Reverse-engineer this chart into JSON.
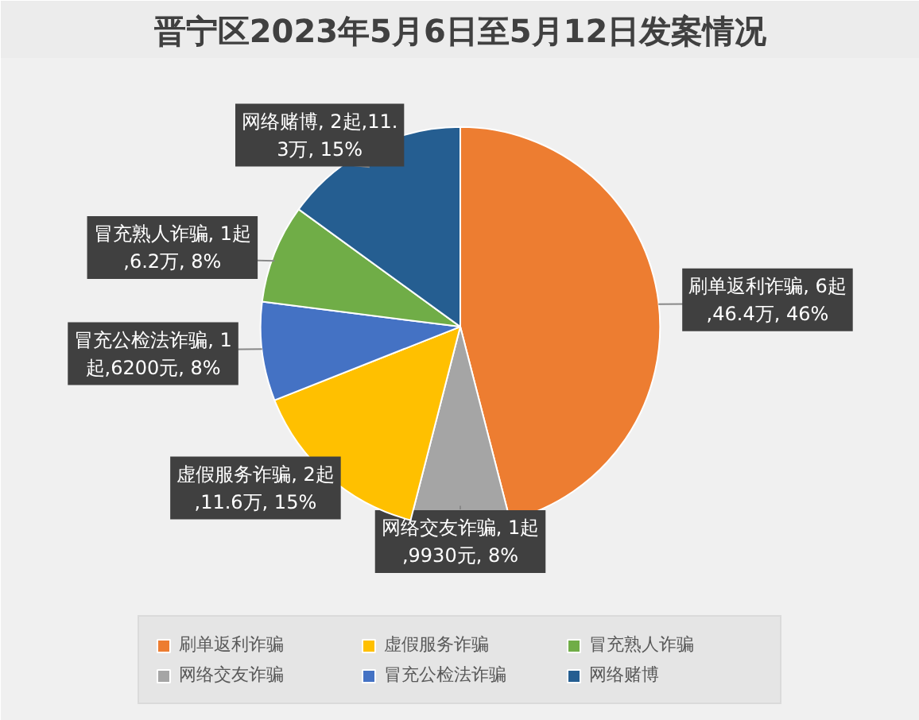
{
  "chart_data": {
    "type": "pie",
    "title": "晋宁区2023年5月6日至5月12日发案情况",
    "categories": [
      "刷单返利诈骗",
      "网络交友诈骗",
      "虚假服务诈骗",
      "冒充公检法诈骗",
      "冒充熟人诈骗",
      "网络赌博"
    ],
    "values": [
      46,
      8,
      15,
      8,
      8,
      15
    ],
    "colors": [
      "#ed7d31",
      "#a5a5a5",
      "#ffc000",
      "#4472c4",
      "#70ad47",
      "#255e91"
    ],
    "value_labels": [
      "刷单返利诈骗, 6起,46.4万, 46%",
      "网络交友诈骗, 1起,9930元, 8%",
      "虚假服务诈骗, 2起,11.6万, 15%",
      "冒充公检法诈骗, 1起,6200元, 8%",
      "冒充熟人诈骗, 1起,6.2万, 8%",
      "网络赌博, 2起,11.3万, 15%"
    ],
    "legend": "bottom"
  }
}
